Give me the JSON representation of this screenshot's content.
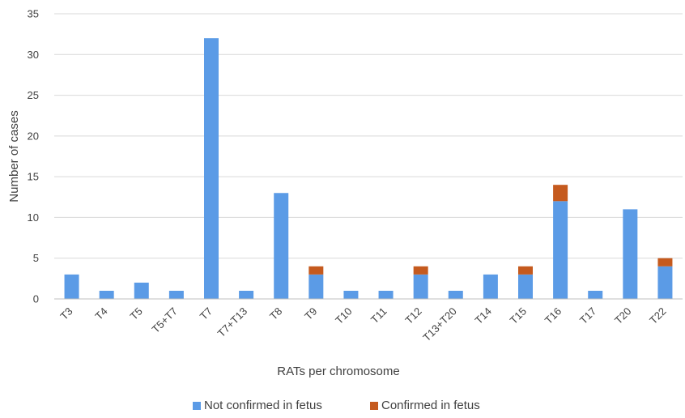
{
  "chart_data": {
    "type": "bar",
    "stacked": true,
    "title": "",
    "xlabel": "RATs per chromosome",
    "ylabel": "Number of cases",
    "ylim": [
      0,
      35
    ],
    "yticks": [
      0,
      5,
      10,
      15,
      20,
      25,
      30,
      35
    ],
    "grid": true,
    "legend_position": "bottom",
    "categories": [
      "T3",
      "T4",
      "T5",
      "T5+T7",
      "T7",
      "T7+T13",
      "T8",
      "T9",
      "T10",
      "T11",
      "T12",
      "T13+T20",
      "T14",
      "T15",
      "T16",
      "T17",
      "T20",
      "T22"
    ],
    "series": [
      {
        "name": "Not confirmed in fetus",
        "color": "#5B9BE6",
        "values": [
          3,
          1,
          2,
          1,
          32,
          1,
          13,
          3,
          1,
          1,
          3,
          1,
          3,
          3,
          12,
          1,
          11,
          4
        ]
      },
      {
        "name": "Confirmed in fetus",
        "color": "#C55A1E",
        "values": [
          0,
          0,
          0,
          0,
          0,
          0,
          0,
          1,
          0,
          0,
          1,
          0,
          0,
          1,
          2,
          0,
          0,
          1
        ]
      }
    ]
  }
}
